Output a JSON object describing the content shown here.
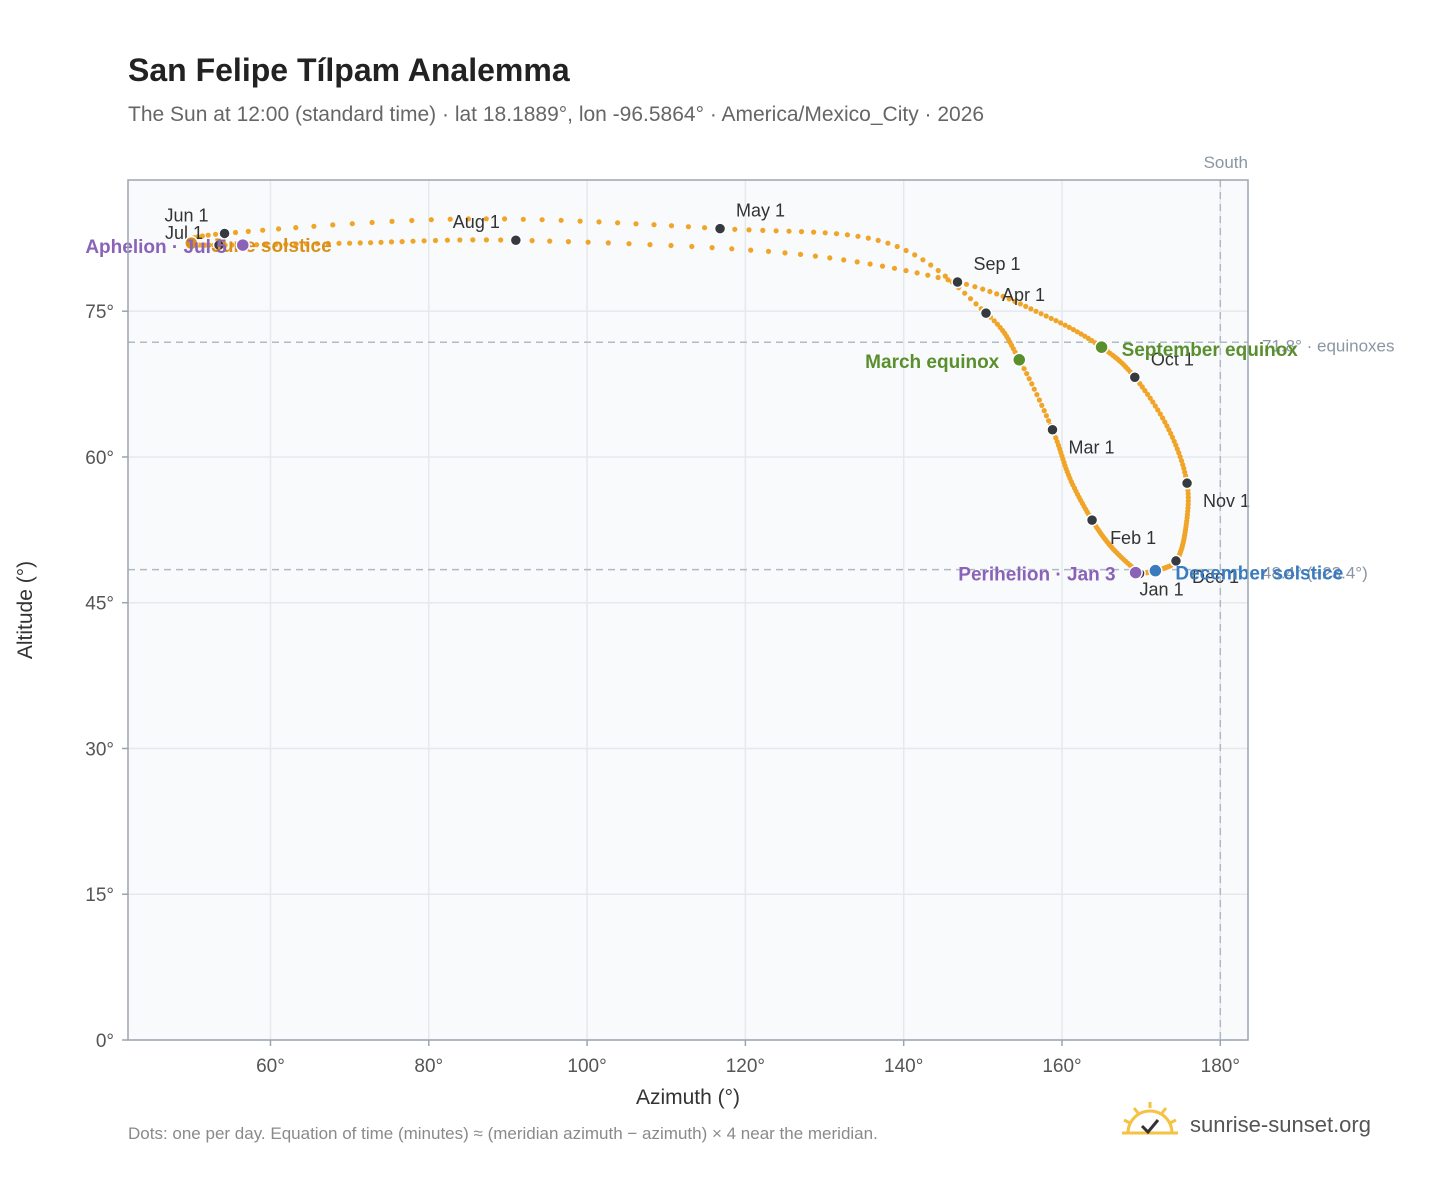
{
  "title": "San Felipe Tílpam Analemma",
  "subtitle": "The Sun at 12:00 (standard time) · lat 18.1889°, lon -96.5864° · America/Mexico_City · 2026",
  "footnote": "Dots: one per day. Equation of time (minutes) ≈ (meridian azimuth − azimuth) × 4 near the meridian.",
  "brand": {
    "name": "sunrise-sunset.org",
    "icon": "sun-check-icon"
  },
  "colors": {
    "path": "#f0a528",
    "month_marker": "#343a40",
    "equinox": "#5a8f2e",
    "december_solstice": "#3a7bbf",
    "june_solstice": "#d9901a",
    "aphelion_perihelion": "#8a63b8",
    "reference_line": "#b0bac4",
    "plot_bg": "#f8fafc",
    "grid": "#e4e9ee",
    "axis": "#9aa5b1"
  },
  "chart_data": {
    "type": "scatter",
    "xlabel": "Azimuth (°)",
    "ylabel": "Altitude (°)",
    "xlim": [
      42,
      183.5
    ],
    "ylim": [
      0,
      88.5
    ],
    "x_ticks": [
      60,
      80,
      100,
      120,
      140,
      160,
      180
    ],
    "x_tick_labels": [
      "60°",
      "80°",
      "100°",
      "120°",
      "140°",
      "160°",
      "180°"
    ],
    "y_ticks": [
      0,
      15,
      30,
      45,
      60,
      75
    ],
    "y_tick_labels": [
      "0°",
      "15°",
      "30°",
      "45°",
      "60°",
      "75°"
    ],
    "grid": true,
    "meridian": {
      "azimuth": 180,
      "label": "South"
    },
    "reference_lines": [
      {
        "altitude": 71.8,
        "label": "71.8° · equinoxes"
      },
      {
        "altitude": 48.4,
        "label": "48.4° (−23.4°)"
      }
    ],
    "path_waypoints": [
      {
        "date": "Jan 1",
        "az": 169.8,
        "alt": 48.0
      },
      {
        "date": "Jan 15",
        "az": 166.5,
        "alt": 50.5
      },
      {
        "date": "Feb 1",
        "az": 163.8,
        "alt": 53.5
      },
      {
        "date": "Feb 15",
        "az": 161.0,
        "alt": 57.8
      },
      {
        "date": "Mar 1",
        "az": 158.8,
        "alt": 62.8
      },
      {
        "date": "Mar 20",
        "az": 154.6,
        "alt": 70.0
      },
      {
        "date": "Apr 1",
        "az": 150.4,
        "alt": 74.8
      },
      {
        "date": "Apr 15",
        "az": 138.0,
        "alt": 82.0
      },
      {
        "date": "May 1",
        "az": 116.8,
        "alt": 83.5
      },
      {
        "date": "May 15",
        "az": 85.0,
        "alt": 84.5
      },
      {
        "date": "Jun 1",
        "az": 54.2,
        "alt": 83.0
      },
      {
        "date": "Jun 21",
        "az": 50.0,
        "alt": 82.0
      },
      {
        "date": "Jul 1",
        "az": 53.5,
        "alt": 81.8
      },
      {
        "date": "Jul 15",
        "az": 70.0,
        "alt": 82.0
      },
      {
        "date": "Aug 1",
        "az": 91.0,
        "alt": 82.3
      },
      {
        "date": "Aug 15",
        "az": 125.0,
        "alt": 81.0
      },
      {
        "date": "Sep 1",
        "az": 146.8,
        "alt": 78.0
      },
      {
        "date": "Sep 15",
        "az": 158.0,
        "alt": 74.5
      },
      {
        "date": "Sep 22",
        "az": 165.0,
        "alt": 71.3
      },
      {
        "date": "Oct 1",
        "az": 169.2,
        "alt": 68.2
      },
      {
        "date": "Oct 15",
        "az": 173.5,
        "alt": 62.8
      },
      {
        "date": "Nov 1",
        "az": 175.8,
        "alt": 57.3
      },
      {
        "date": "Nov 15",
        "az": 175.6,
        "alt": 52.5
      },
      {
        "date": "Dec 1",
        "az": 174.4,
        "alt": 49.3
      },
      {
        "date": "Dec 21",
        "az": 171.8,
        "alt": 48.3
      },
      {
        "date": "Dec 31",
        "az": 169.8,
        "alt": 48.0
      }
    ],
    "month_markers": [
      {
        "label": "Jan 1",
        "az": 169.8,
        "alt": 48.0
      },
      {
        "label": "Feb 1",
        "az": 163.8,
        "alt": 53.5
      },
      {
        "label": "Mar 1",
        "az": 158.8,
        "alt": 62.8
      },
      {
        "label": "Apr 1",
        "az": 150.4,
        "alt": 74.8
      },
      {
        "label": "May 1",
        "az": 116.8,
        "alt": 83.5
      },
      {
        "label": "Jun 1",
        "az": 54.2,
        "alt": 83.0
      },
      {
        "label": "Jul 1",
        "az": 53.5,
        "alt": 81.8
      },
      {
        "label": "Aug 1",
        "az": 91.0,
        "alt": 82.3
      },
      {
        "label": "Sep 1",
        "az": 146.8,
        "alt": 78.0
      },
      {
        "label": "Oct 1",
        "az": 169.2,
        "alt": 68.2
      },
      {
        "label": "Nov 1",
        "az": 175.8,
        "alt": 57.3
      },
      {
        "label": "Dec 1",
        "az": 174.4,
        "alt": 49.3
      }
    ],
    "events": [
      {
        "label": "March equinox",
        "az": 154.6,
        "alt": 70.0,
        "color": "equinox"
      },
      {
        "label": "September equinox",
        "az": 165.0,
        "alt": 71.3,
        "color": "equinox"
      },
      {
        "label": "December solstice",
        "az": 171.8,
        "alt": 48.3,
        "color": "december_solstice"
      },
      {
        "label": "June solstice",
        "az": 50.0,
        "alt": 82.0,
        "color": "june_solstice"
      },
      {
        "label": "Aphelion · Jul 5",
        "az": 56.5,
        "alt": 81.8,
        "color": "aphelion_perihelion"
      },
      {
        "label": "Perihelion · Jan 3",
        "az": 169.3,
        "alt": 48.1,
        "color": "aphelion_perihelion"
      }
    ]
  }
}
